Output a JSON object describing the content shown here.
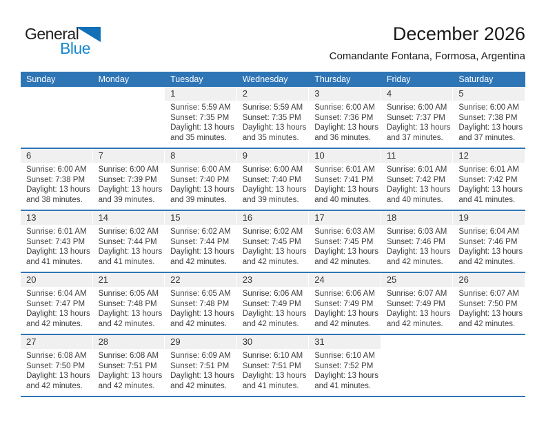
{
  "logo": {
    "general": "General",
    "blue": "Blue"
  },
  "header": {
    "title": "December 2026",
    "subtitle": "Comandante Fontana, Formosa, Argentina"
  },
  "colors": {
    "accent": "#2e75b6",
    "band": "#f0f0f0",
    "logo_blue": "#1688cf"
  },
  "calendar": {
    "weekdays": [
      "Sunday",
      "Monday",
      "Tuesday",
      "Wednesday",
      "Thursday",
      "Friday",
      "Saturday"
    ],
    "labels": {
      "sunrise": "Sunrise:",
      "sunset": "Sunset:",
      "daylight": "Daylight:",
      "hours": "hours",
      "and": "and",
      "minutes": "minutes."
    },
    "weeks": [
      [
        null,
        null,
        {
          "d": 1,
          "rise": "5:59 AM",
          "set": "7:35 PM",
          "dh": 13,
          "dm": 35
        },
        {
          "d": 2,
          "rise": "5:59 AM",
          "set": "7:35 PM",
          "dh": 13,
          "dm": 35
        },
        {
          "d": 3,
          "rise": "6:00 AM",
          "set": "7:36 PM",
          "dh": 13,
          "dm": 36
        },
        {
          "d": 4,
          "rise": "6:00 AM",
          "set": "7:37 PM",
          "dh": 13,
          "dm": 37
        },
        {
          "d": 5,
          "rise": "6:00 AM",
          "set": "7:38 PM",
          "dh": 13,
          "dm": 37
        }
      ],
      [
        {
          "d": 6,
          "rise": "6:00 AM",
          "set": "7:38 PM",
          "dh": 13,
          "dm": 38
        },
        {
          "d": 7,
          "rise": "6:00 AM",
          "set": "7:39 PM",
          "dh": 13,
          "dm": 39
        },
        {
          "d": 8,
          "rise": "6:00 AM",
          "set": "7:40 PM",
          "dh": 13,
          "dm": 39
        },
        {
          "d": 9,
          "rise": "6:00 AM",
          "set": "7:40 PM",
          "dh": 13,
          "dm": 39
        },
        {
          "d": 10,
          "rise": "6:01 AM",
          "set": "7:41 PM",
          "dh": 13,
          "dm": 40
        },
        {
          "d": 11,
          "rise": "6:01 AM",
          "set": "7:42 PM",
          "dh": 13,
          "dm": 40
        },
        {
          "d": 12,
          "rise": "6:01 AM",
          "set": "7:42 PM",
          "dh": 13,
          "dm": 41
        }
      ],
      [
        {
          "d": 13,
          "rise": "6:01 AM",
          "set": "7:43 PM",
          "dh": 13,
          "dm": 41
        },
        {
          "d": 14,
          "rise": "6:02 AM",
          "set": "7:44 PM",
          "dh": 13,
          "dm": 41
        },
        {
          "d": 15,
          "rise": "6:02 AM",
          "set": "7:44 PM",
          "dh": 13,
          "dm": 42
        },
        {
          "d": 16,
          "rise": "6:02 AM",
          "set": "7:45 PM",
          "dh": 13,
          "dm": 42
        },
        {
          "d": 17,
          "rise": "6:03 AM",
          "set": "7:45 PM",
          "dh": 13,
          "dm": 42
        },
        {
          "d": 18,
          "rise": "6:03 AM",
          "set": "7:46 PM",
          "dh": 13,
          "dm": 42
        },
        {
          "d": 19,
          "rise": "6:04 AM",
          "set": "7:46 PM",
          "dh": 13,
          "dm": 42
        }
      ],
      [
        {
          "d": 20,
          "rise": "6:04 AM",
          "set": "7:47 PM",
          "dh": 13,
          "dm": 42
        },
        {
          "d": 21,
          "rise": "6:05 AM",
          "set": "7:48 PM",
          "dh": 13,
          "dm": 42
        },
        {
          "d": 22,
          "rise": "6:05 AM",
          "set": "7:48 PM",
          "dh": 13,
          "dm": 42
        },
        {
          "d": 23,
          "rise": "6:06 AM",
          "set": "7:49 PM",
          "dh": 13,
          "dm": 42
        },
        {
          "d": 24,
          "rise": "6:06 AM",
          "set": "7:49 PM",
          "dh": 13,
          "dm": 42
        },
        {
          "d": 25,
          "rise": "6:07 AM",
          "set": "7:49 PM",
          "dh": 13,
          "dm": 42
        },
        {
          "d": 26,
          "rise": "6:07 AM",
          "set": "7:50 PM",
          "dh": 13,
          "dm": 42
        }
      ],
      [
        {
          "d": 27,
          "rise": "6:08 AM",
          "set": "7:50 PM",
          "dh": 13,
          "dm": 42
        },
        {
          "d": 28,
          "rise": "6:08 AM",
          "set": "7:51 PM",
          "dh": 13,
          "dm": 42
        },
        {
          "d": 29,
          "rise": "6:09 AM",
          "set": "7:51 PM",
          "dh": 13,
          "dm": 42
        },
        {
          "d": 30,
          "rise": "6:10 AM",
          "set": "7:51 PM",
          "dh": 13,
          "dm": 41
        },
        {
          "d": 31,
          "rise": "6:10 AM",
          "set": "7:52 PM",
          "dh": 13,
          "dm": 41
        },
        null,
        null
      ]
    ]
  }
}
